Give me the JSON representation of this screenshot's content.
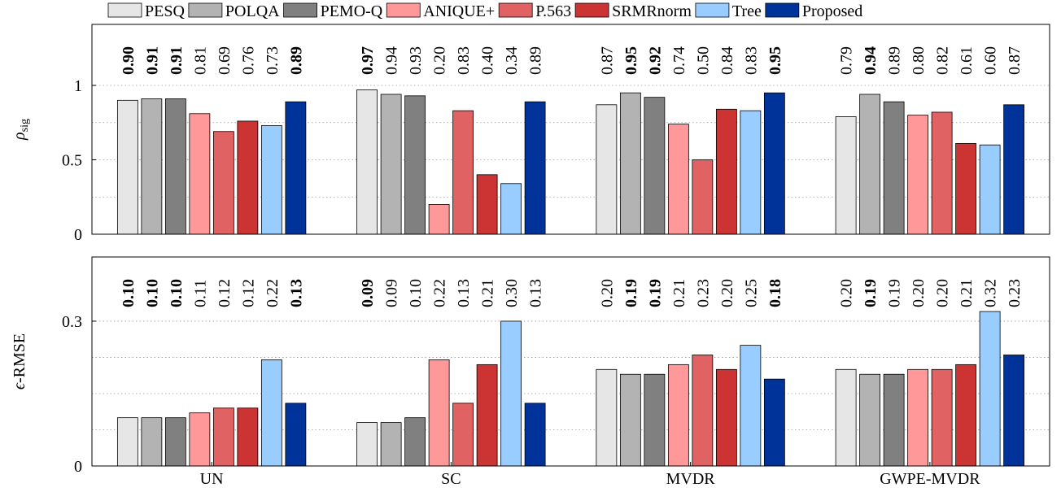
{
  "chart_data": [
    {
      "type": "bar",
      "y_label": "ρsig",
      "ylim": [
        0,
        1.41
      ],
      "yticks": [
        0,
        0.5,
        1
      ],
      "grid_yticks": [
        0.25,
        0.5,
        0.75,
        1
      ],
      "grid": true,
      "series": [
        {
          "name": "PESQ",
          "color": "#e6e6e6",
          "values": [
            0.9,
            0.97,
            0.87,
            0.79
          ],
          "value_labels": [
            "0.90",
            "0.97",
            "0.87",
            "0.79"
          ],
          "bold": [
            true,
            true,
            false,
            false
          ]
        },
        {
          "name": "POLQA",
          "color": "#b3b3b3",
          "values": [
            0.91,
            0.94,
            0.95,
            0.94
          ],
          "value_labels": [
            "0.91",
            "0.94",
            "0.95",
            "0.94"
          ],
          "bold": [
            true,
            false,
            true,
            true
          ]
        },
        {
          "name": "PEMO-Q",
          "color": "#808080",
          "values": [
            0.91,
            0.93,
            0.92,
            0.89
          ],
          "value_labels": [
            "0.91",
            "0.93",
            "0.92",
            "0.89"
          ],
          "bold": [
            true,
            false,
            true,
            false
          ]
        },
        {
          "name": "ANIQUE+",
          "color": "#ff9999",
          "values": [
            0.81,
            0.2,
            0.74,
            0.8
          ],
          "value_labels": [
            "0.81",
            "0.20",
            "0.74",
            "0.80"
          ],
          "bold": [
            false,
            false,
            false,
            false
          ]
        },
        {
          "name": "P.563",
          "color": "#e06262",
          "values": [
            0.69,
            0.83,
            0.5,
            0.82
          ],
          "value_labels": [
            "0.69",
            "0.83",
            "0.50",
            "0.82"
          ],
          "bold": [
            false,
            false,
            false,
            false
          ]
        },
        {
          "name": "SRMRnorm",
          "color": "#cc3333",
          "values": [
            0.76,
            0.4,
            0.84,
            0.61
          ],
          "value_labels": [
            "0.76",
            "0.40",
            "0.84",
            "0.61"
          ],
          "bold": [
            false,
            false,
            false,
            false
          ]
        },
        {
          "name": "Tree",
          "color": "#99ccff",
          "values": [
            0.73,
            0.34,
            0.83,
            0.6
          ],
          "value_labels": [
            "0.73",
            "0.34",
            "0.83",
            "0.60"
          ],
          "bold": [
            false,
            false,
            false,
            false
          ]
        },
        {
          "name": "Proposed",
          "color": "#003399",
          "values": [
            0.89,
            0.89,
            0.95,
            0.87
          ],
          "value_labels": [
            "0.89",
            "0.89",
            "0.95",
            "0.87"
          ],
          "bold": [
            true,
            false,
            true,
            false
          ]
        }
      ]
    },
    {
      "type": "bar",
      "y_label": "ϵ-RMSE",
      "categories": [
        "UN",
        "SC",
        "MVDR",
        "GWPE-MVDR"
      ],
      "ylim": [
        0,
        0.433
      ],
      "yticks": [
        0,
        0.3
      ],
      "grid_yticks": [
        0.075,
        0.15,
        0.225,
        0.3
      ],
      "grid": true,
      "series": [
        {
          "color": "#e6e6e6",
          "values": [
            0.1,
            0.09,
            0.2,
            0.2
          ],
          "value_labels": [
            "0.10",
            "0.09",
            "0.20",
            "0.20"
          ],
          "bold": [
            true,
            true,
            false,
            false
          ]
        },
        {
          "color": "#b3b3b3",
          "values": [
            0.1,
            0.09,
            0.19,
            0.19
          ],
          "value_labels": [
            "0.10",
            "0.09",
            "0.19",
            "0.19"
          ],
          "bold": [
            true,
            false,
            true,
            true
          ]
        },
        {
          "color": "#808080",
          "values": [
            0.1,
            0.1,
            0.19,
            0.19
          ],
          "value_labels": [
            "0.10",
            "0.10",
            "0.19",
            "0.19"
          ],
          "bold": [
            true,
            false,
            true,
            false
          ]
        },
        {
          "color": "#ff9999",
          "values": [
            0.11,
            0.22,
            0.21,
            0.2
          ],
          "value_labels": [
            "0.11",
            "0.22",
            "0.21",
            "0.20"
          ],
          "bold": [
            false,
            false,
            false,
            false
          ]
        },
        {
          "color": "#e06262",
          "values": [
            0.12,
            0.13,
            0.23,
            0.2
          ],
          "value_labels": [
            "0.12",
            "0.13",
            "0.23",
            "0.20"
          ],
          "bold": [
            false,
            false,
            false,
            false
          ]
        },
        {
          "color": "#cc3333",
          "values": [
            0.12,
            0.21,
            0.2,
            0.21
          ],
          "value_labels": [
            "0.12",
            "0.21",
            "0.20",
            "0.21"
          ],
          "bold": [
            false,
            false,
            false,
            false
          ]
        },
        {
          "color": "#99ccff",
          "values": [
            0.22,
            0.3,
            0.25,
            0.32
          ],
          "value_labels": [
            "0.22",
            "0.30",
            "0.25",
            "0.32"
          ],
          "bold": [
            false,
            false,
            false,
            false
          ]
        },
        {
          "color": "#003399",
          "values": [
            0.13,
            0.13,
            0.18,
            0.23
          ],
          "value_labels": [
            "0.13",
            "0.13",
            "0.18",
            "0.23"
          ],
          "bold": [
            true,
            false,
            true,
            false
          ]
        }
      ]
    }
  ]
}
